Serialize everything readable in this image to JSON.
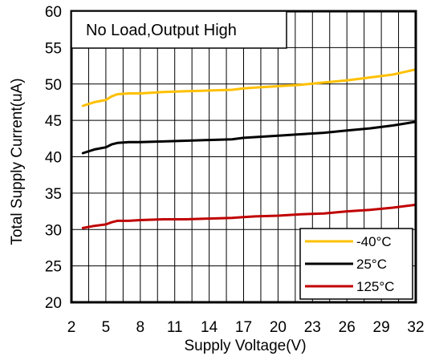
{
  "chart_data": {
    "type": "line",
    "xlabel": "Supply Voltage(V)",
    "ylabel": "Total Supply Current(uA)",
    "annotation": "No Load,Output High",
    "xlim": [
      2,
      32
    ],
    "ylim": [
      20,
      60
    ],
    "xticks": [
      2,
      5,
      8,
      11,
      14,
      17,
      20,
      23,
      26,
      29,
      32
    ],
    "yticks": [
      20,
      25,
      30,
      35,
      40,
      45,
      50,
      55,
      60
    ],
    "xgrid_step": 1.5,
    "ygrid_step": 5,
    "grid": true,
    "legend_position": "bottom-right",
    "series": [
      {
        "name": "-40°C",
        "color": "#ffc000",
        "x": [
          3,
          4,
          5,
          5.5,
          6,
          7,
          8,
          10,
          12,
          14,
          16,
          17,
          18,
          20,
          22,
          24,
          26,
          28,
          30,
          32
        ],
        "y": [
          47,
          47.5,
          47.8,
          48.3,
          48.6,
          48.7,
          48.7,
          48.9,
          49,
          49.1,
          49.2,
          49.4,
          49.5,
          49.7,
          49.9,
          50.2,
          50.5,
          50.9,
          51.3,
          52
        ]
      },
      {
        "name": "25°C",
        "color": "#000000",
        "x": [
          3,
          4,
          5,
          5.5,
          6,
          7,
          8,
          10,
          12,
          14,
          16,
          17,
          18,
          20,
          22,
          24,
          26,
          28,
          30,
          32
        ],
        "y": [
          40.5,
          41,
          41.3,
          41.7,
          41.9,
          42,
          42,
          42.1,
          42.2,
          42.3,
          42.4,
          42.6,
          42.7,
          42.9,
          43.1,
          43.3,
          43.6,
          43.9,
          44.3,
          44.8
        ]
      },
      {
        "name": "125°C",
        "color": "#c00000",
        "x": [
          3,
          4,
          5,
          5.5,
          6,
          7,
          8,
          10,
          12,
          14,
          16,
          17,
          18,
          20,
          22,
          24,
          26,
          28,
          30,
          32
        ],
        "y": [
          30.2,
          30.5,
          30.7,
          31,
          31.2,
          31.2,
          31.3,
          31.4,
          31.4,
          31.5,
          31.6,
          31.7,
          31.8,
          31.9,
          32.1,
          32.2,
          32.5,
          32.7,
          33,
          33.4
        ]
      }
    ]
  }
}
